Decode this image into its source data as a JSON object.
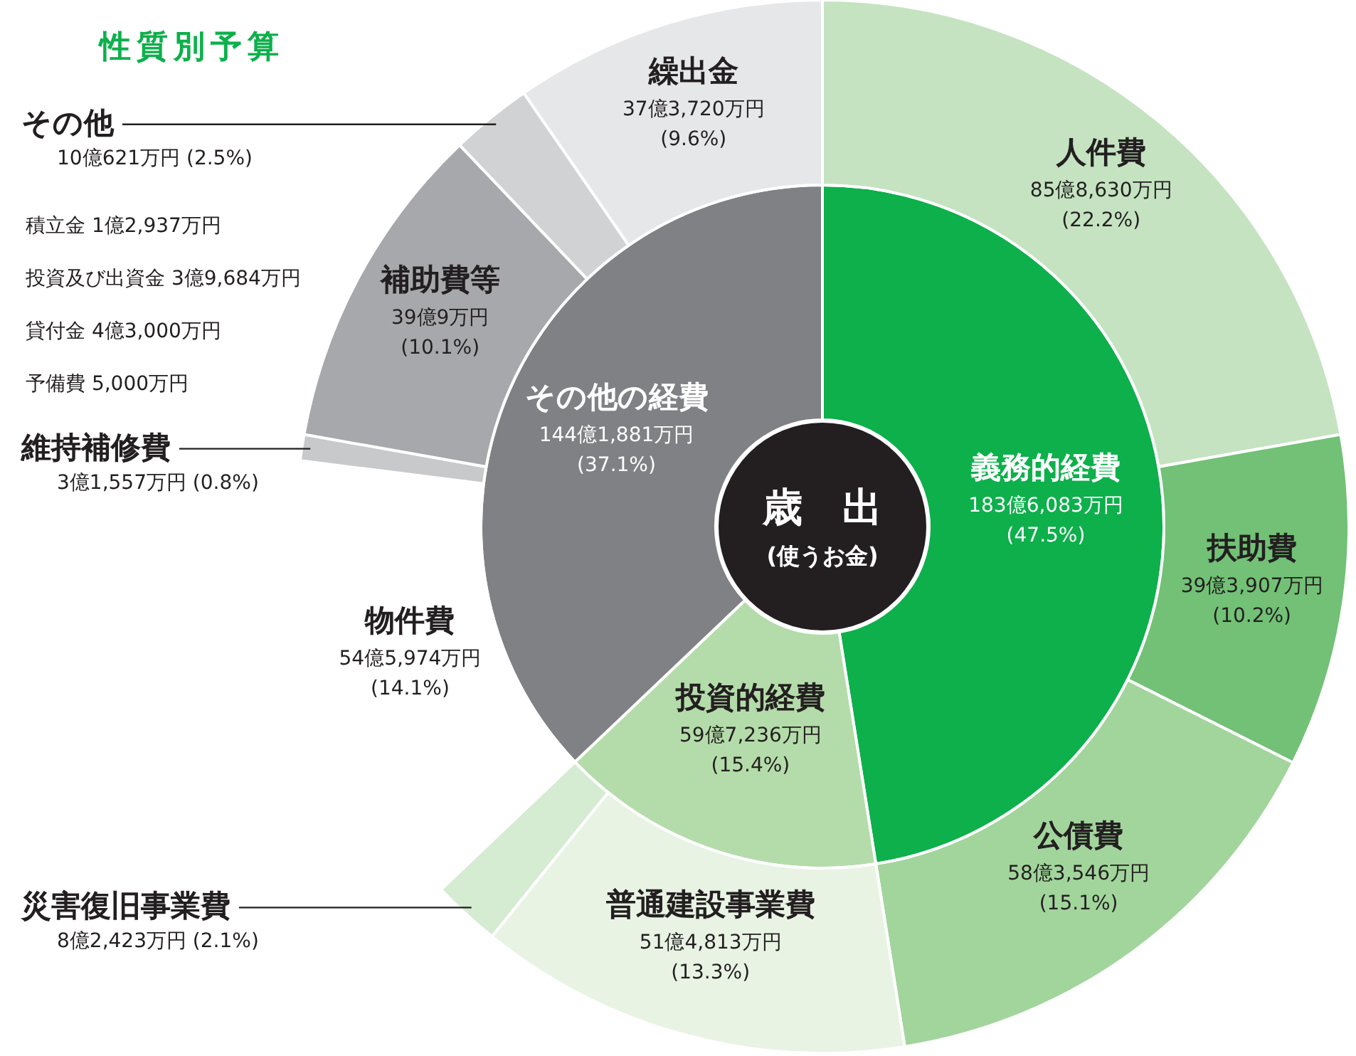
{
  "chart_data": [
    {
      "type": "donut",
      "title": "性質別予算",
      "categories": [
        "義務的経費",
        "投資的経費",
        "その他の経費"
      ],
      "values": [
        47.5,
        15.4,
        37.1
      ],
      "colors": [
        "#0db04b",
        "#b4dcaa",
        "#808184"
      ],
      "value_labels": [
        "183億6,083万円 (47.5%)",
        "59億7,236万円 (15.4%)",
        "144億1,881万円 (37.1%)"
      ],
      "annotations": [
        "歳　出",
        "(使うお金)",
        "積立金 1億2,937万円",
        "投資及び出資金 3億9,684万円",
        "貸付金 4億3,000万円",
        "予備費 5,000万円"
      ]
    },
    {
      "type": "donut",
      "categories": [
        "人件費",
        "扶助費",
        "公債費",
        "普通建設事業費",
        "災害復旧事業費",
        "物件費",
        "維持補修費",
        "補助費等",
        "その他",
        "繰出金"
      ],
      "values": [
        22.2,
        10.2,
        15.1,
        13.3,
        2.1,
        14.1,
        0.8,
        10.1,
        2.5,
        9.6
      ],
      "colors": [
        "#c5e3c1",
        "#72c176",
        "#a2d59c",
        "#e8f3e4",
        "#d5ebd2",
        "#ffffff",
        "#c8c9cb",
        "#a7a8ab",
        "#d1d2d4",
        "#e6e7e8"
      ],
      "value_labels": [
        "85億8,630万円 (22.2%)",
        "39億3,907万円 (10.2%)",
        "58億3,546万円 (15.1%)",
        "51億4,813万円 (13.3%)",
        "8億2,423万円 (2.1%)",
        "54億5,974万円 (14.1%)",
        "3億1,557万円 (0.8%)",
        "39億9万円 (10.1%)",
        "10億621万円 (2.5%)",
        "37億3,720万円 (9.6%)"
      ]
    }
  ]
}
